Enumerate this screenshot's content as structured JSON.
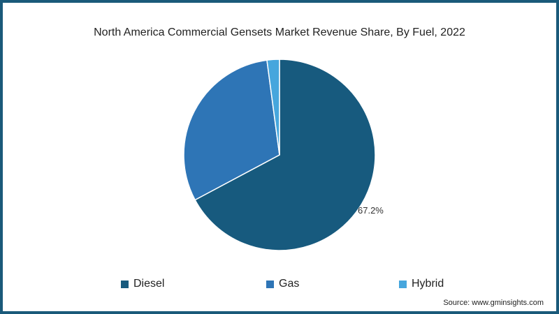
{
  "chart_data": {
    "type": "pie",
    "title": "North America Commercial Gensets Market Revenue Share, By Fuel, 2022",
    "categories": [
      "Diesel",
      "Gas",
      "Hybrid"
    ],
    "values": [
      67.2,
      30.7,
      2.1
    ],
    "colors": [
      "#175a7e",
      "#2e75b6",
      "#46a6dd"
    ],
    "data_labels": [
      "67.2%",
      "",
      ""
    ],
    "legend_placement": "bottom",
    "source": "Source: www.gminsights.com"
  }
}
